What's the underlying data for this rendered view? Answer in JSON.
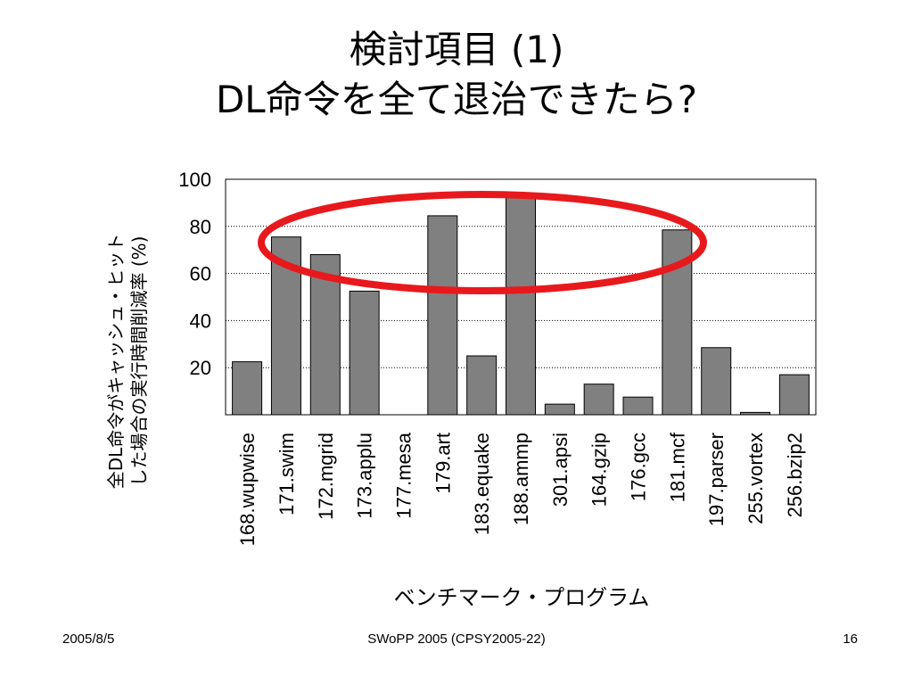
{
  "slide": {
    "title_line1": "検討項目 (1)",
    "title_line2": "DL命令を全て退治できたら?"
  },
  "footer": {
    "date": "2005/8/5",
    "conference": "SWoPP 2005 (CPSY2005-22)",
    "page": "16"
  },
  "chart_data": {
    "type": "bar",
    "categories": [
      "168.wupwise",
      "171.swim",
      "172.mgrid",
      "173.applu",
      "177.mesa",
      "179.art",
      "183.equake",
      "188.ammp",
      "301.apsi",
      "164.gzip",
      "176.gcc",
      "181.mcf",
      "197.parser",
      "255.vortex",
      "256.bzip2"
    ],
    "values": [
      22.5,
      75.5,
      68,
      52.5,
      0,
      84.5,
      25,
      92.5,
      4.5,
      13,
      7.5,
      78.5,
      28.5,
      1,
      17
    ],
    "title": "",
    "xlabel": "ベンチマーク・プログラム",
    "ylabel_line1": "全DL命令がキャッシュ・ヒット",
    "ylabel_line2": "した場合の実行時間削減率 (%)",
    "ylim": [
      0,
      100
    ],
    "yticks": [
      20,
      40,
      60,
      80,
      100
    ],
    "grid": "horizontal dotted",
    "bar_color": "#808080",
    "annotation": {
      "type": "ellipse",
      "color": "#e8191c",
      "note": "highlights bars above 60%"
    }
  }
}
